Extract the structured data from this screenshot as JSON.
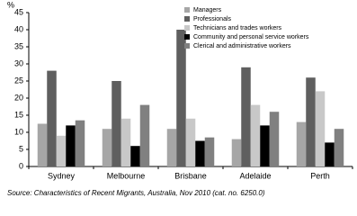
{
  "chart_data": {
    "type": "bar",
    "y_label": "%",
    "categories": [
      "Sydney",
      "Melbourne",
      "Brisbane",
      "Adelaide",
      "Perth"
    ],
    "series": [
      {
        "name": "Managers",
        "color": "#a6a6a6",
        "values": [
          12.5,
          11,
          11,
          8,
          13
        ]
      },
      {
        "name": "Professionals",
        "color": "#5f5f5f",
        "values": [
          28,
          25,
          40,
          29,
          26
        ]
      },
      {
        "name": "Technicians and trades workers",
        "color": "#c8c8c8",
        "values": [
          9,
          14,
          14,
          18,
          22
        ]
      },
      {
        "name": "Community and personal service workers",
        "color": "#000000",
        "values": [
          12,
          6,
          7.5,
          12,
          7
        ]
      },
      {
        "name": "Clerical and administrative workers",
        "color": "#808080",
        "values": [
          13.5,
          18,
          8.5,
          16,
          11
        ]
      }
    ],
    "ylim": [
      0,
      45
    ],
    "yticks": [
      0,
      5,
      10,
      15,
      20,
      25,
      30,
      35,
      40,
      45
    ],
    "legend": "top-right",
    "source": "Source: Characteristics of Recent Migrants, Australia, Nov 2010 (cat. no. 6250.0)"
  }
}
